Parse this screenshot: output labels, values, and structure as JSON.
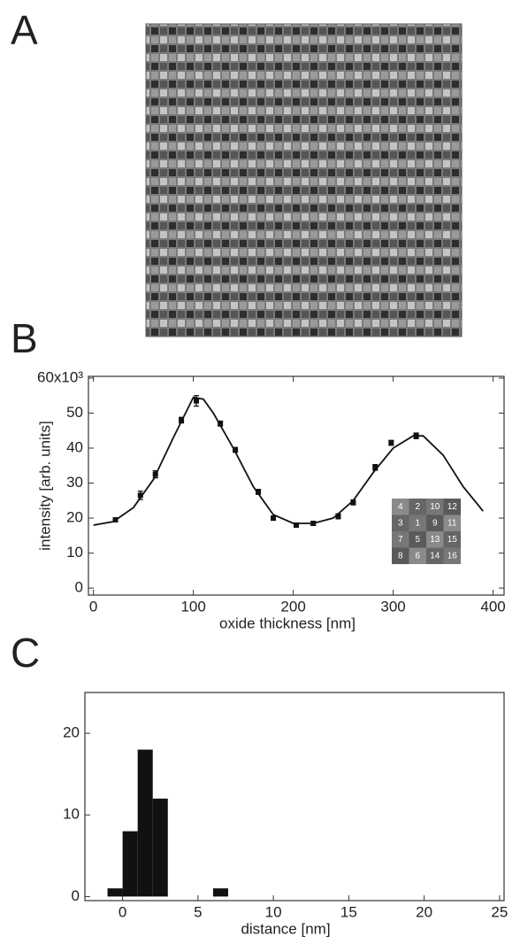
{
  "chart_data": [
    {
      "type": "image",
      "panel": "A"
    },
    {
      "type": "scatter",
      "panel": "B",
      "xlabel": "oxide thickness [nm]",
      "ylabel": "intensity [arb. units]",
      "xlim": [
        -5,
        411
      ],
      "ylim": [
        -2,
        60.5
      ],
      "xticks": [
        0,
        100,
        200,
        300,
        400
      ],
      "yticks": [
        0,
        10,
        20,
        30,
        40,
        50,
        {
          "value": 60,
          "label": "60x10³"
        }
      ],
      "series": [
        {
          "type": "scatter",
          "color": "#111",
          "x": [
            22,
            47,
            62,
            88,
            103,
            127,
            142,
            165,
            180,
            203,
            220,
            245,
            260,
            282,
            298,
            323
          ],
          "values": [
            19.5,
            26.5,
            32.5,
            48,
            53.5,
            47,
            39.5,
            27.5,
            20,
            18,
            18.5,
            20.5,
            24.5,
            34.5,
            41.5,
            43.5
          ],
          "errors": [
            0.6,
            1.2,
            1,
            0.8,
            1.5,
            0.7,
            0.7,
            0.7,
            0.6,
            0.5,
            0.6,
            0.7,
            0.7,
            0.8,
            0.7,
            0.8
          ]
        },
        {
          "type": "line",
          "color": "#111",
          "x": [
            0,
            20,
            40,
            60,
            80,
            100,
            110,
            120,
            140,
            160,
            180,
            200,
            220,
            240,
            260,
            280,
            300,
            320,
            330,
            350,
            370,
            390
          ],
          "values": [
            18,
            19,
            23,
            31,
            43,
            54.5,
            54,
            50,
            40,
            29,
            21,
            18.5,
            18.5,
            20,
            25,
            33,
            40,
            43.5,
            43.5,
            38,
            29,
            22
          ]
        }
      ],
      "inset": [
        [
          "4",
          "2",
          "10",
          "12"
        ],
        [
          "3",
          "1",
          "9",
          "11"
        ],
        [
          "7",
          "5",
          "13",
          "15"
        ],
        [
          "8",
          "6",
          "14",
          "16"
        ]
      ]
    },
    {
      "type": "histogram",
      "panel": "C",
      "xlabel": "distance [nm]",
      "xlim": [
        -2.5,
        25.3
      ],
      "ylim": [
        -0.5,
        25
      ],
      "xticks": [
        0,
        5,
        10,
        15,
        20,
        25
      ],
      "yticks": [
        0,
        10,
        20
      ],
      "bins": [
        -1,
        0,
        1,
        2,
        3,
        4,
        5,
        6,
        7,
        8,
        9,
        10,
        11
      ],
      "counts": [
        1,
        8,
        18,
        12,
        0,
        0,
        0,
        1,
        0,
        0,
        0,
        0
      ],
      "color": "#111"
    }
  ]
}
